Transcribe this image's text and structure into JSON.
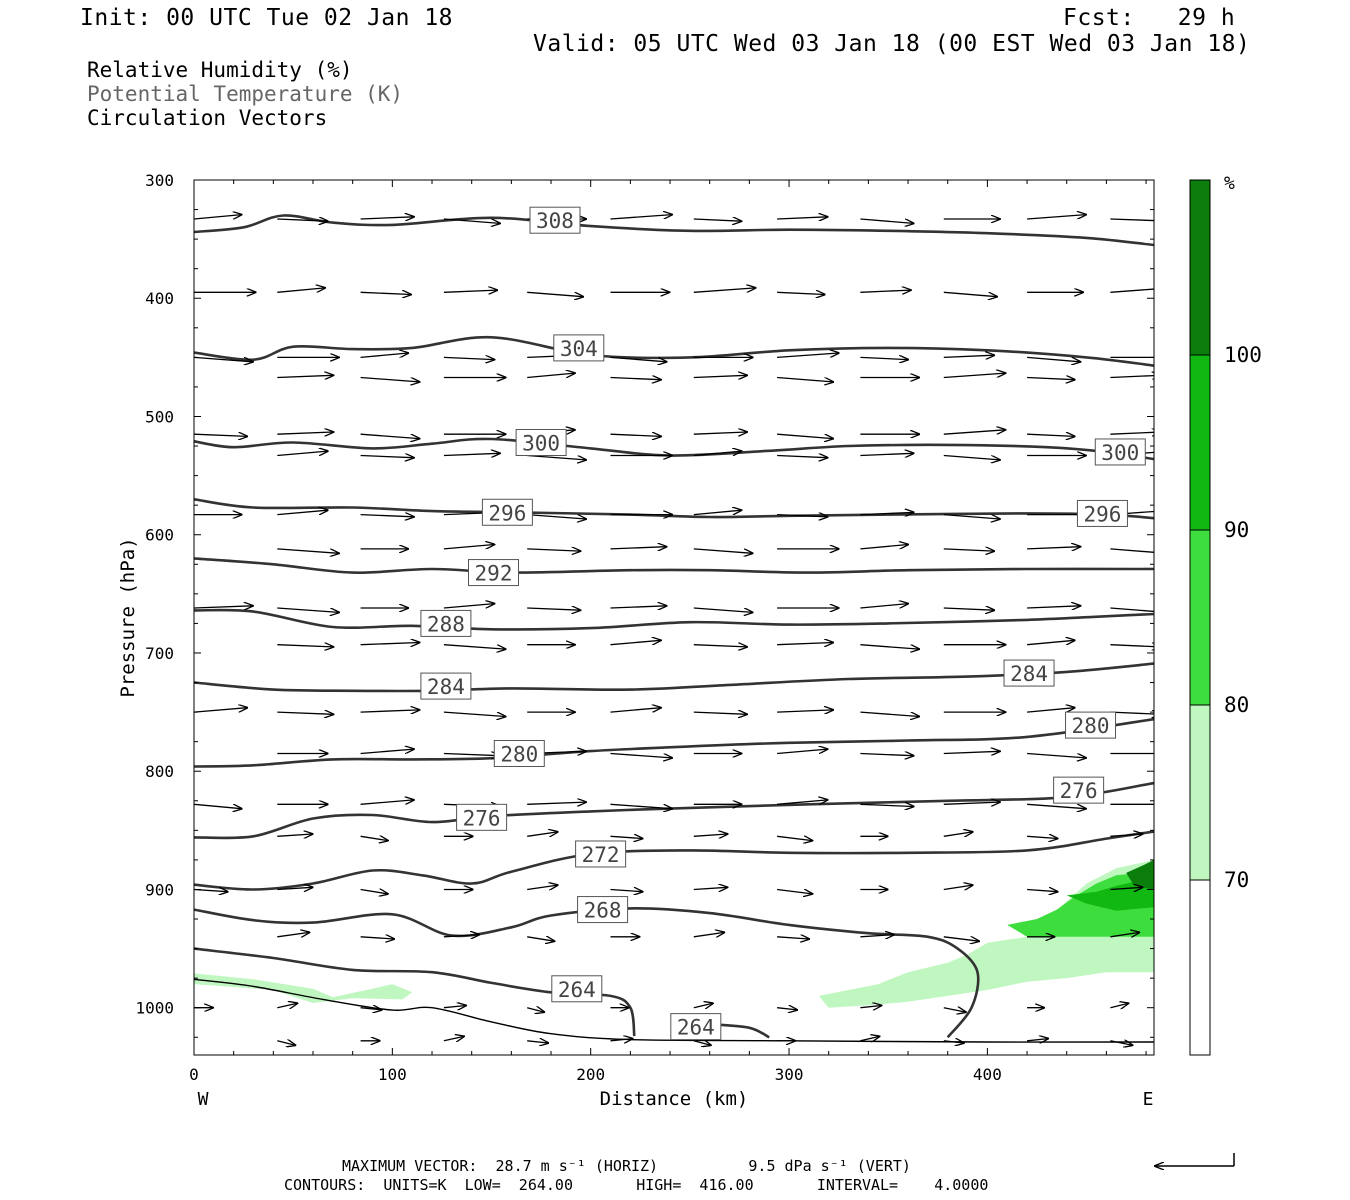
{
  "header": {
    "init": "Init: 00 UTC Tue 02 Jan 18",
    "fcst": "Fcst:   29 h",
    "valid": "Valid: 05 UTC Wed 03 Jan 18 (00 EST Wed 03 Jan 18)"
  },
  "legend": {
    "line1": "Relative Humidity (%)",
    "line2": "Potential Temperature (K)",
    "line3": "Circulation Vectors"
  },
  "footer": {
    "line1": "MAXIMUM VECTOR:  28.7 m s⁻¹ (HORIZ)          9.5 dPa s⁻¹ (VERT)",
    "line2": "CONTOURS:  UNITS=K  LOW=  264.00       HIGH=  416.00       INTERVAL=    4.0000"
  },
  "colors": {
    "contour": "#333333",
    "rh_70_80": "#c0f7c0",
    "rh_80_90": "#3ddd3d",
    "rh_90_100": "#12b812",
    "rh_100": "#0a7d0a"
  },
  "chart_data": {
    "type": "contour cross-section",
    "xlabel": "Distance (km)",
    "ylabel": "Pressure (hPa)",
    "xlim": [
      0,
      484
    ],
    "ylim": [
      1040,
      300
    ],
    "x_ticks": [
      "0",
      "100",
      "200",
      "300",
      "400"
    ],
    "y_ticks": [
      "300",
      "400",
      "500",
      "600",
      "700",
      "800",
      "900",
      "1000"
    ],
    "x_ends": {
      "left": "W",
      "right": "E"
    },
    "colorbar": {
      "unit": "%",
      "levels": [
        "70",
        "80",
        "90",
        "100"
      ]
    },
    "theta_contours": [
      {
        "value": 308,
        "label_at": [
          [
            182,
            334
          ]
        ],
        "points": [
          [
            0,
            344
          ],
          [
            25,
            340
          ],
          [
            45,
            330
          ],
          [
            70,
            336
          ],
          [
            100,
            338
          ],
          [
            150,
            332
          ],
          [
            200,
            339
          ],
          [
            250,
            343
          ],
          [
            300,
            342
          ],
          [
            350,
            343
          ],
          [
            400,
            345
          ],
          [
            450,
            349
          ],
          [
            484,
            355
          ]
        ]
      },
      {
        "value": 304,
        "label_at": [
          [
            194,
            442
          ]
        ],
        "points": [
          [
            0,
            446
          ],
          [
            30,
            452
          ],
          [
            50,
            441
          ],
          [
            80,
            443
          ],
          [
            110,
            442
          ],
          [
            150,
            433
          ],
          [
            200,
            448
          ],
          [
            250,
            450
          ],
          [
            300,
            444
          ],
          [
            350,
            442
          ],
          [
            400,
            444
          ],
          [
            450,
            450
          ],
          [
            484,
            457
          ]
        ]
      },
      {
        "value": 300,
        "label_at": [
          [
            175,
            522
          ],
          [
            467,
            530
          ]
        ],
        "points": [
          [
            0,
            521
          ],
          [
            20,
            526
          ],
          [
            50,
            522
          ],
          [
            90,
            527
          ],
          [
            120,
            523
          ],
          [
            150,
            519
          ],
          [
            200,
            527
          ],
          [
            240,
            533
          ],
          [
            290,
            529
          ],
          [
            330,
            525
          ],
          [
            380,
            524
          ],
          [
            430,
            526
          ],
          [
            460,
            530
          ],
          [
            484,
            536
          ]
        ]
      },
      {
        "value": 296,
        "label_at": [
          [
            158,
            581
          ],
          [
            458,
            582
          ]
        ],
        "points": [
          [
            0,
            570
          ],
          [
            30,
            577
          ],
          [
            80,
            577
          ],
          [
            120,
            580
          ],
          [
            160,
            581
          ],
          [
            220,
            583
          ],
          [
            260,
            585
          ],
          [
            300,
            584
          ],
          [
            350,
            583
          ],
          [
            420,
            582
          ],
          [
            460,
            583
          ],
          [
            484,
            586
          ]
        ]
      },
      {
        "value": 292,
        "label_at": [
          [
            151,
            632
          ]
        ],
        "points": [
          [
            0,
            620
          ],
          [
            40,
            625
          ],
          [
            80,
            632
          ],
          [
            120,
            629
          ],
          [
            160,
            632
          ],
          [
            220,
            630
          ],
          [
            260,
            630
          ],
          [
            310,
            632
          ],
          [
            360,
            630
          ],
          [
            420,
            629
          ],
          [
            484,
            629
          ]
        ]
      },
      {
        "value": 288,
        "label_at": [
          [
            127,
            675
          ]
        ],
        "points": [
          [
            0,
            664
          ],
          [
            30,
            665
          ],
          [
            70,
            678
          ],
          [
            110,
            677
          ],
          [
            150,
            680
          ],
          [
            200,
            679
          ],
          [
            250,
            674
          ],
          [
            300,
            676
          ],
          [
            350,
            675
          ],
          [
            420,
            672
          ],
          [
            484,
            667
          ]
        ]
      },
      {
        "value": 284,
        "label_at": [
          [
            127,
            728
          ],
          [
            421,
            717
          ]
        ],
        "points": [
          [
            0,
            725
          ],
          [
            40,
            731
          ],
          [
            80,
            732
          ],
          [
            120,
            732
          ],
          [
            160,
            730
          ],
          [
            220,
            731
          ],
          [
            270,
            727
          ],
          [
            330,
            722
          ],
          [
            390,
            720
          ],
          [
            440,
            716
          ],
          [
            484,
            709
          ]
        ]
      },
      {
        "value": 280,
        "label_at": [
          [
            164,
            785
          ],
          [
            452,
            761
          ]
        ],
        "points": [
          [
            0,
            796
          ],
          [
            30,
            795
          ],
          [
            70,
            790
          ],
          [
            110,
            790
          ],
          [
            150,
            789
          ],
          [
            200,
            783
          ],
          [
            250,
            779
          ],
          [
            300,
            776
          ],
          [
            360,
            774
          ],
          [
            420,
            771
          ],
          [
            484,
            756
          ]
        ]
      },
      {
        "value": 276,
        "label_at": [
          [
            145,
            839
          ],
          [
            446,
            816
          ]
        ],
        "points": [
          [
            0,
            856
          ],
          [
            30,
            855
          ],
          [
            60,
            840
          ],
          [
            90,
            837
          ],
          [
            120,
            843
          ],
          [
            150,
            838
          ],
          [
            200,
            834
          ],
          [
            250,
            831
          ],
          [
            310,
            828
          ],
          [
            380,
            825
          ],
          [
            440,
            822
          ],
          [
            484,
            810
          ]
        ]
      },
      {
        "value": 272,
        "label_at": [
          [
            205,
            870
          ]
        ],
        "points": [
          [
            0,
            896
          ],
          [
            30,
            900
          ],
          [
            60,
            895
          ],
          [
            90,
            884
          ],
          [
            115,
            888
          ],
          [
            140,
            895
          ],
          [
            160,
            885
          ],
          [
            200,
            870
          ],
          [
            250,
            867
          ],
          [
            300,
            869
          ],
          [
            360,
            869
          ],
          [
            420,
            867
          ],
          [
            460,
            857
          ],
          [
            484,
            851
          ]
        ]
      },
      {
        "value": 268,
        "label_at": [
          [
            206,
            917
          ]
        ],
        "points": [
          [
            0,
            917
          ],
          [
            30,
            926
          ],
          [
            60,
            928
          ],
          [
            100,
            921
          ],
          [
            130,
            939
          ],
          [
            160,
            932
          ],
          [
            180,
            922
          ],
          [
            220,
            916
          ],
          [
            260,
            920
          ],
          [
            300,
            930
          ],
          [
            340,
            937
          ],
          [
            370,
            940
          ],
          [
            385,
            950
          ],
          [
            395,
            970
          ],
          [
            392,
            1000
          ],
          [
            380,
            1025
          ]
        ]
      },
      {
        "value": 264,
        "label_at": [
          [
            193,
            984
          ],
          [
            253,
            1016
          ]
        ],
        "points": [
          [
            0,
            950
          ],
          [
            40,
            958
          ],
          [
            80,
            968
          ],
          [
            120,
            970
          ],
          [
            150,
            979
          ],
          [
            180,
            987
          ],
          [
            210,
            990
          ],
          [
            220,
            1000
          ],
          [
            222,
            1024
          ]
        ]
      },
      {
        "value": 264,
        "points": [
          [
            261,
            1014
          ],
          [
            280,
            1017
          ],
          [
            290,
            1025
          ]
        ]
      },
      {
        "value": "ground",
        "points": [
          [
            0,
            976
          ],
          [
            30,
            982
          ],
          [
            65,
            993
          ],
          [
            100,
            1002
          ],
          [
            120,
            1000
          ],
          [
            150,
            1012
          ],
          [
            180,
            1022
          ],
          [
            220,
            1027
          ],
          [
            300,
            1028
          ],
          [
            400,
            1029
          ],
          [
            484,
            1029
          ]
        ]
      }
    ],
    "rh_fill": [
      {
        "range": "70-80",
        "polygons": [
          [
            [
              0,
              971
            ],
            [
              30,
              976
            ],
            [
              60,
              984
            ],
            [
              70,
              991
            ],
            [
              90,
              984
            ],
            [
              100,
              980
            ],
            [
              110,
              987
            ],
            [
              105,
              993
            ],
            [
              80,
              992
            ],
            [
              60,
              996
            ],
            [
              40,
              985
            ],
            [
              0,
              980
            ]
          ],
          [
            [
              315,
              990
            ],
            [
              330,
              985
            ],
            [
              345,
              980
            ],
            [
              360,
              970
            ],
            [
              380,
              962
            ],
            [
              390,
              955
            ],
            [
              400,
              945
            ],
            [
              420,
              940
            ],
            [
              430,
              925
            ],
            [
              440,
              910
            ],
            [
              450,
              895
            ],
            [
              465,
              882
            ],
            [
              484,
              875
            ],
            [
              484,
              970
            ],
            [
              460,
              970
            ],
            [
              440,
              975
            ],
            [
              420,
              978
            ],
            [
              400,
              985
            ],
            [
              380,
              990
            ],
            [
              360,
              995
            ],
            [
              340,
              998
            ],
            [
              320,
              1000
            ]
          ]
        ]
      },
      {
        "range": "80-90",
        "polygons": [
          [
            [
              410,
              930
            ],
            [
              425,
              925
            ],
            [
              435,
              917
            ],
            [
              445,
              905
            ],
            [
              455,
              895
            ],
            [
              465,
              888
            ],
            [
              484,
              885
            ],
            [
              484,
              940
            ],
            [
              450,
              940
            ],
            [
              420,
              940
            ]
          ]
        ]
      },
      {
        "range": "90-100",
        "polygons": [
          [
            [
              440,
              905
            ],
            [
              455,
              902
            ],
            [
              465,
              897
            ],
            [
              475,
              893
            ],
            [
              484,
              890
            ],
            [
              484,
              915
            ],
            [
              465,
              918
            ],
            [
              450,
              912
            ]
          ]
        ]
      },
      {
        "range": ">100",
        "polygons": [
          [
            [
              470,
              886
            ],
            [
              478,
              880
            ],
            [
              484,
              875
            ],
            [
              484,
              900
            ],
            [
              474,
              897
            ]
          ]
        ]
      }
    ],
    "wind_vectors": "about 160 circulation arrows, mostly west-to-east (left to right) with weak vertical components, drawn at a regular grid (x every ~42 km, ~0.6 inch spacing)"
  }
}
